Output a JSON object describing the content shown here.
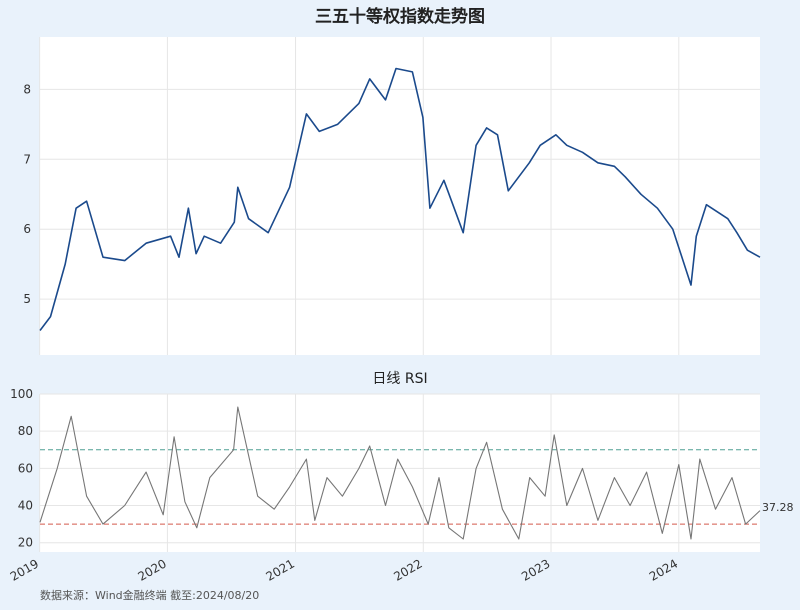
{
  "chart_data": [
    {
      "type": "line",
      "title": "三五十等权指数走势图",
      "xlabel": "",
      "ylabel": "",
      "x_range": [
        "2019-01-02",
        "2024-08-20"
      ],
      "ylim": [
        4.2,
        8.75
      ],
      "y_ticks": [
        5,
        6,
        7,
        8
      ],
      "grid": true,
      "series_color": "#1b4a8c",
      "series": [
        {
          "x": [
            "2019-01-02",
            "2019-02-01",
            "2019-03-15",
            "2019-04-15",
            "2019-05-15",
            "2019-07-01",
            "2019-09-01",
            "2019-11-01",
            "2020-01-10",
            "2020-02-03",
            "2020-03-01",
            "2020-03-23",
            "2020-04-15",
            "2020-06-01",
            "2020-07-10",
            "2020-07-20",
            "2020-08-20",
            "2020-10-15",
            "2020-12-15",
            "2021-02-01",
            "2021-03-10",
            "2021-05-01",
            "2021-07-01",
            "2021-08-01",
            "2021-09-15",
            "2021-10-15",
            "2021-12-01",
            "2021-12-31",
            "2022-01-20",
            "2022-03-01",
            "2022-04-25",
            "2022-06-01",
            "2022-07-01",
            "2022-08-01",
            "2022-09-01",
            "2022-10-31",
            "2022-12-01",
            "2023-01-15",
            "2023-02-15",
            "2023-04-01",
            "2023-05-15",
            "2023-07-01",
            "2023-08-01",
            "2023-09-15",
            "2023-11-01",
            "2023-12-15",
            "2024-02-05",
            "2024-02-20",
            "2024-03-20",
            "2024-05-20",
            "2024-06-15",
            "2024-07-15",
            "2024-08-20"
          ],
          "values": [
            4.55,
            4.75,
            5.5,
            6.3,
            6.4,
            5.6,
            5.55,
            5.8,
            5.9,
            5.6,
            6.3,
            5.65,
            5.9,
            5.8,
            6.1,
            6.6,
            6.15,
            5.95,
            6.6,
            7.65,
            7.4,
            7.5,
            7.8,
            8.15,
            7.85,
            8.3,
            8.25,
            7.6,
            6.3,
            6.7,
            5.95,
            7.2,
            7.45,
            7.35,
            6.55,
            6.95,
            7.2,
            7.35,
            7.2,
            7.1,
            6.95,
            6.9,
            6.75,
            6.5,
            6.3,
            6.0,
            5.2,
            5.9,
            6.35,
            6.15,
            5.95,
            5.7,
            5.6
          ]
        }
      ]
    },
    {
      "type": "line",
      "title": "日线 RSI",
      "xlabel": "",
      "ylabel": "",
      "x_range": [
        "2019-01-02",
        "2024-08-20"
      ],
      "ylim": [
        15,
        100
      ],
      "y_ticks": [
        20,
        40,
        60,
        80,
        100
      ],
      "x_ticks": [
        "2019",
        "2020",
        "2021",
        "2022",
        "2023",
        "2024"
      ],
      "grid": true,
      "series_color": "#767676",
      "reference_lines": [
        {
          "value": 70,
          "color": "#4f9f93"
        },
        {
          "value": 30,
          "color": "#d45a4c"
        }
      ],
      "last_value_label": "37.28",
      "series": [
        {
          "x": [
            "2019-01-02",
            "2019-02-20",
            "2019-04-01",
            "2019-05-15",
            "2019-07-01",
            "2019-09-01",
            "2019-11-01",
            "2019-12-20",
            "2020-01-20",
            "2020-02-20",
            "2020-03-25",
            "2020-05-01",
            "2020-07-08",
            "2020-07-20",
            "2020-09-15",
            "2020-11-01",
            "2020-12-15",
            "2021-02-01",
            "2021-02-25",
            "2021-04-01",
            "2021-05-15",
            "2021-07-01",
            "2021-08-01",
            "2021-09-15",
            "2021-10-20",
            "2021-12-01",
            "2022-01-15",
            "2022-02-15",
            "2022-03-15",
            "2022-04-25",
            "2022-06-01",
            "2022-07-01",
            "2022-08-15",
            "2022-10-01",
            "2022-11-01",
            "2022-12-15",
            "2023-01-10",
            "2023-02-15",
            "2023-04-01",
            "2023-05-15",
            "2023-07-01",
            "2023-08-15",
            "2023-10-01",
            "2023-11-15",
            "2024-01-01",
            "2024-02-05",
            "2024-03-01",
            "2024-04-15",
            "2024-06-01",
            "2024-07-10",
            "2024-08-20"
          ],
          "values": [
            31,
            60,
            88,
            45,
            30,
            40,
            58,
            35,
            77,
            42,
            28,
            55,
            70,
            93,
            45,
            38,
            50,
            65,
            32,
            55,
            45,
            60,
            72,
            40,
            65,
            50,
            30,
            55,
            28,
            22,
            60,
            74,
            38,
            22,
            55,
            45,
            78,
            40,
            60,
            32,
            55,
            40,
            58,
            25,
            62,
            22,
            65,
            38,
            55,
            30,
            37.28
          ]
        }
      ]
    }
  ],
  "footer": {
    "source": "数据来源：Wind金融终端 截至:2024/08/20"
  }
}
